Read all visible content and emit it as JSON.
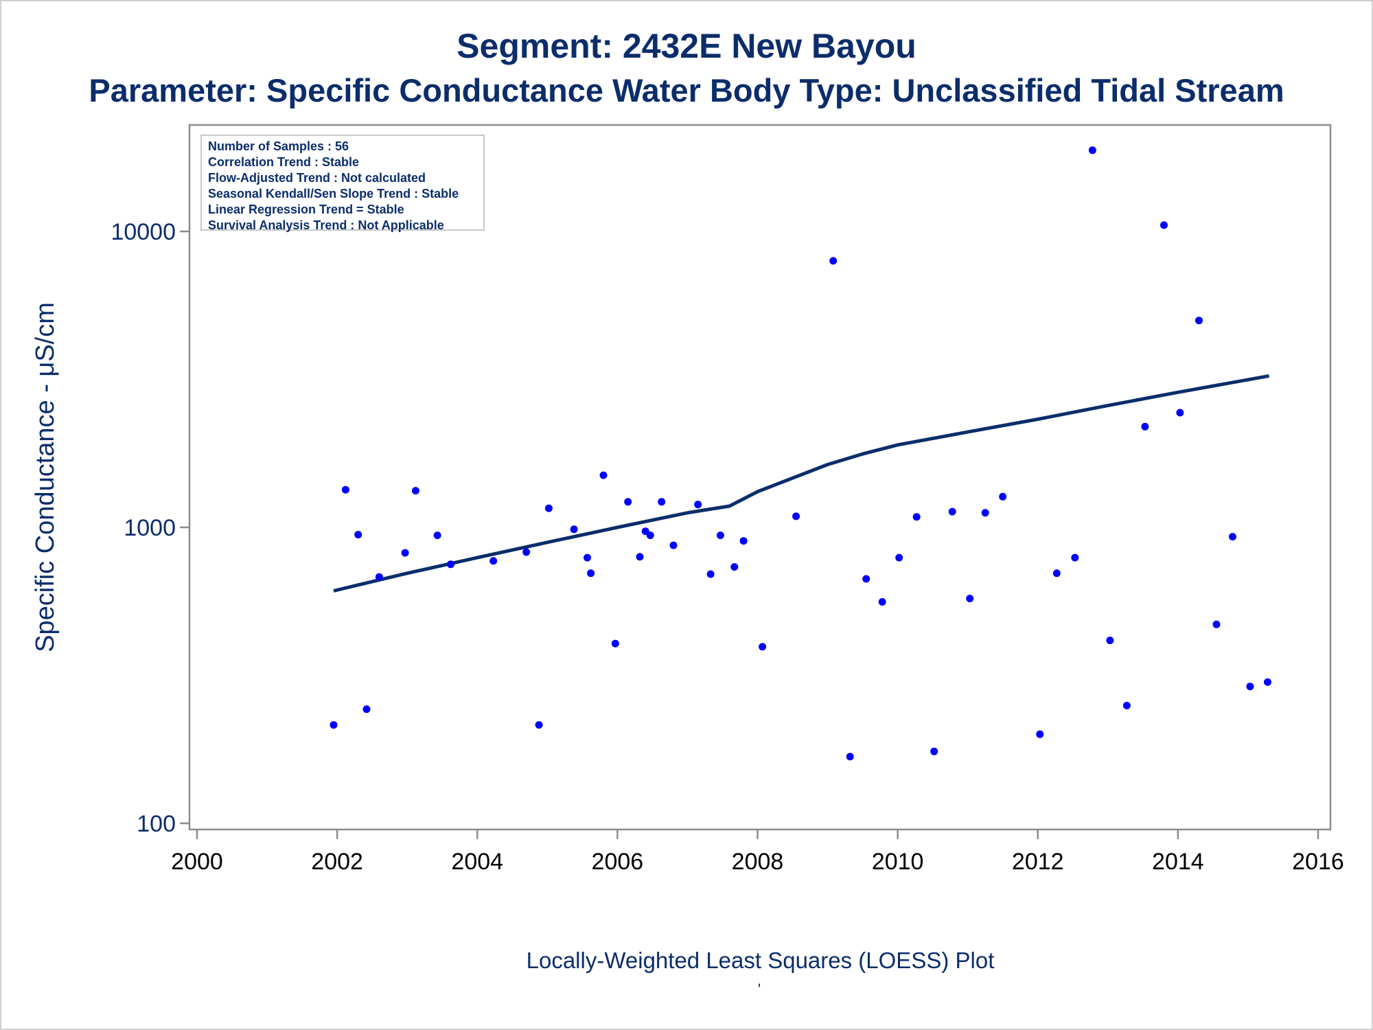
{
  "title": "Segment: 2432E  New Bayou",
  "subtitle": "Parameter: Specific Conductance   Water Body Type: Unclassified Tidal Stream",
  "caption": "Locally-Weighted Least Squares (LOESS) Plot",
  "footnote_mark": "'",
  "stats": [
    "Number of Samples : 56",
    "Correlation Trend : Stable",
    "Flow-Adjusted Trend : Not calculated",
    "Seasonal Kendall/Sen Slope Trend : Stable",
    "Linear Regression Trend = Stable",
    "Survival Analysis Trend : Not Applicable"
  ],
  "colors": {
    "text": "#0b2d6b",
    "points": "#0000ff",
    "line": "#0b2d6b",
    "axis": "#8c8c8c"
  },
  "chart_data": {
    "type": "scatter",
    "ylabel": "Specific Conductance -  μS/cm",
    "xlabel": "",
    "yscale": "log",
    "xlim": [
      2000,
      2016
    ],
    "ylim": [
      100,
      20000
    ],
    "xticks": [
      "2000",
      "2002",
      "2004",
      "2006",
      "2008",
      "2010",
      "2012",
      "2014",
      "2016"
    ],
    "yticks": [
      "100",
      "1000",
      "10000"
    ],
    "points": [
      [
        2001.95,
        215
      ],
      [
        2002.12,
        1340
      ],
      [
        2002.3,
        945
      ],
      [
        2002.42,
        243
      ],
      [
        2002.6,
        680
      ],
      [
        2002.97,
        820
      ],
      [
        2003.12,
        1330
      ],
      [
        2003.43,
        940
      ],
      [
        2003.62,
        750
      ],
      [
        2004.23,
        770
      ],
      [
        2004.7,
        825
      ],
      [
        2004.88,
        215
      ],
      [
        2005.02,
        1160
      ],
      [
        2005.38,
        985
      ],
      [
        2005.57,
        790
      ],
      [
        2005.62,
        700
      ],
      [
        2005.8,
        1500
      ],
      [
        2005.97,
        405
      ],
      [
        2006.15,
        1220
      ],
      [
        2006.32,
        795
      ],
      [
        2006.4,
        970
      ],
      [
        2006.47,
        940
      ],
      [
        2006.63,
        1220
      ],
      [
        2006.8,
        870
      ],
      [
        2007.15,
        1195
      ],
      [
        2007.33,
        695
      ],
      [
        2007.47,
        940
      ],
      [
        2007.67,
        735
      ],
      [
        2007.8,
        900
      ],
      [
        2008.07,
        395
      ],
      [
        2008.55,
        1090
      ],
      [
        2009.08,
        7950
      ],
      [
        2009.32,
        168
      ],
      [
        2009.55,
        670
      ],
      [
        2009.78,
        560
      ],
      [
        2010.02,
        790
      ],
      [
        2010.27,
        1085
      ],
      [
        2010.52,
        175
      ],
      [
        2010.78,
        1130
      ],
      [
        2011.03,
        575
      ],
      [
        2011.25,
        1120
      ],
      [
        2011.5,
        1270
      ],
      [
        2012.03,
        200
      ],
      [
        2012.27,
        700
      ],
      [
        2012.53,
        790
      ],
      [
        2012.78,
        18800
      ],
      [
        2013.03,
        415
      ],
      [
        2013.27,
        250
      ],
      [
        2013.53,
        2190
      ],
      [
        2013.8,
        10500
      ],
      [
        2014.03,
        2440
      ],
      [
        2014.3,
        5000
      ],
      [
        2014.55,
        470
      ],
      [
        2014.78,
        930
      ],
      [
        2015.03,
        290
      ],
      [
        2015.28,
        300
      ]
    ],
    "series": [
      {
        "type": "line",
        "x": [
          2001.95,
          2003,
          2004,
          2005,
          2006,
          2007,
          2007.6,
          2008,
          2009,
          2009.5,
          2010,
          2011,
          2012,
          2013,
          2014,
          2015.3
        ],
        "y": [
          610,
          700,
          790,
          890,
          1000,
          1120,
          1180,
          1320,
          1630,
          1770,
          1900,
          2100,
          2320,
          2580,
          2860,
          3250
        ]
      }
    ]
  }
}
